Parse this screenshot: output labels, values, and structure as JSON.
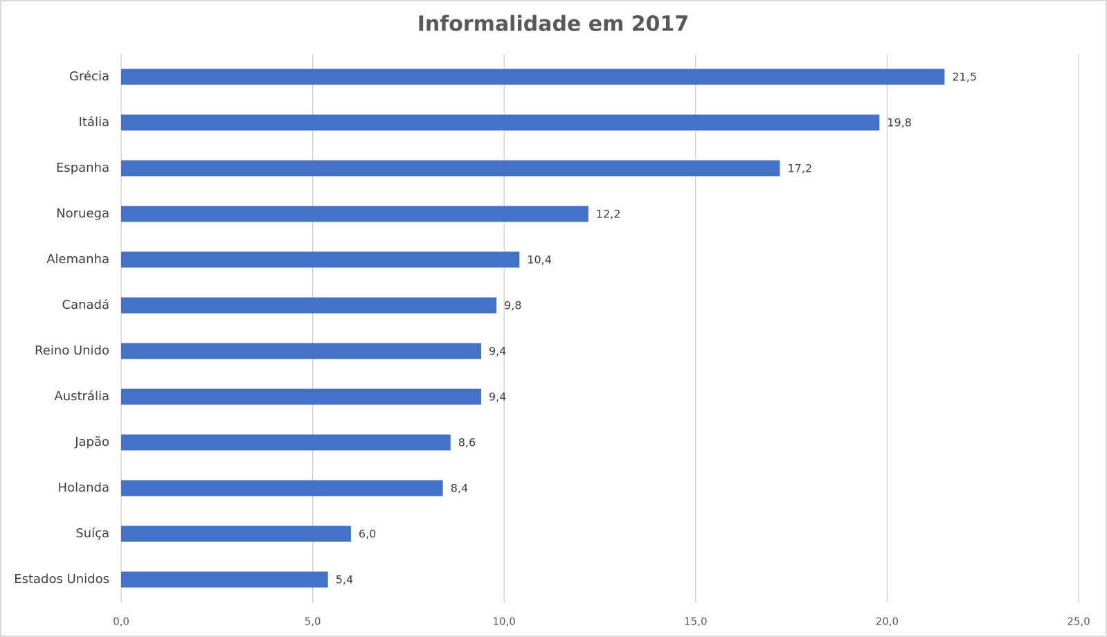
{
  "chart_data": {
    "type": "bar",
    "orientation": "horizontal",
    "title": "Informalidade em 2017",
    "categories": [
      "Grécia",
      "Itália",
      "Espanha",
      "Noruega",
      "Alemanha",
      "Canadá",
      "Reino Unido",
      "Austrália",
      "Japão",
      "Holanda",
      "Suíça",
      "Estados Unidos"
    ],
    "values": [
      21.5,
      19.8,
      17.2,
      12.2,
      10.4,
      9.8,
      9.4,
      9.4,
      8.6,
      8.4,
      6.0,
      5.4
    ],
    "value_labels": [
      "21,5",
      "19,8",
      "17,2",
      "12,2",
      "10,4",
      "9,8",
      "9,4",
      "9,4",
      "8,6",
      "8,4",
      "6,0",
      "5,4"
    ],
    "color": "#4472c4",
    "xlim": [
      0,
      25
    ],
    "xticks": [
      {
        "value": 0,
        "label": "0,0"
      },
      {
        "value": 5,
        "label": "5,0"
      },
      {
        "value": 10,
        "label": "10,0"
      },
      {
        "value": 15,
        "label": "15,0"
      },
      {
        "value": 20,
        "label": "20,0"
      },
      {
        "value": 25,
        "label": "25,0"
      }
    ],
    "grid": true
  }
}
